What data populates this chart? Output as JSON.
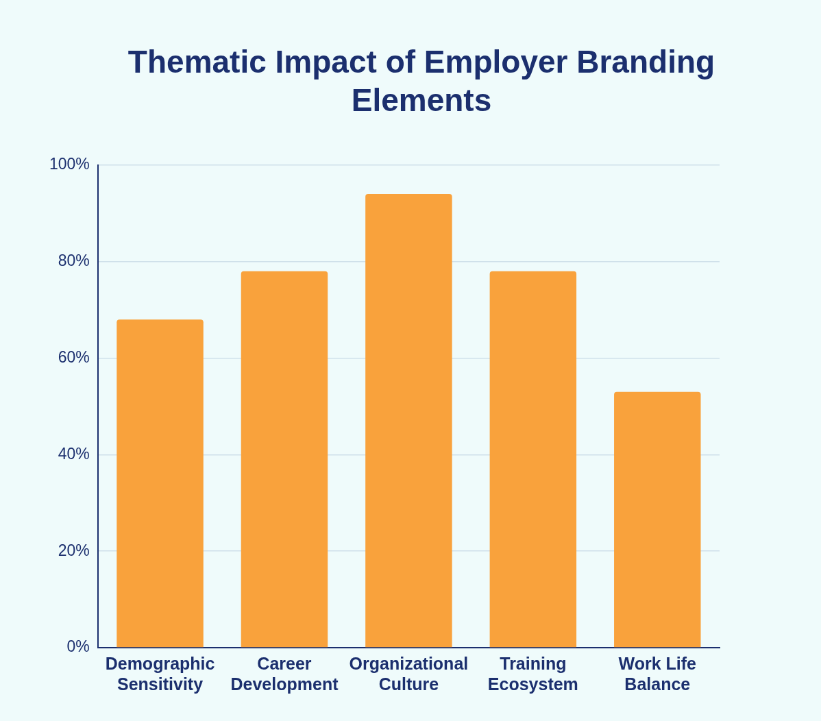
{
  "chart_data": {
    "type": "bar",
    "title": "Thematic Impact of Employer Branding Elements",
    "categories": [
      "Demographic Sensitivity",
      "Career Development",
      "Organizational Culture",
      "Training Ecosystem",
      "Work Life Balance"
    ],
    "values": [
      68,
      78,
      94,
      78,
      53
    ],
    "color": "#f9a23c",
    "ylim": [
      0,
      100
    ],
    "yticks": [
      {
        "value": 0,
        "label": "0%"
      },
      {
        "value": 20,
        "label": "20%"
      },
      {
        "value": 40,
        "label": "40%"
      },
      {
        "value": 60,
        "label": "60%"
      },
      {
        "value": 80,
        "label": "80%"
      },
      {
        "value": 100,
        "label": "100%"
      }
    ],
    "grid": "y"
  }
}
